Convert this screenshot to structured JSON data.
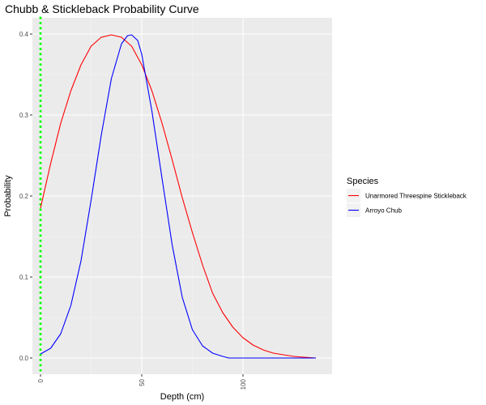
{
  "chart_data": {
    "type": "line",
    "title": "Chubb & Stickleback Probability Curve",
    "xlabel": "Depth (cm)",
    "ylabel": "Probability",
    "xlim": [
      -4,
      144
    ],
    "ylim": [
      -0.02,
      0.42
    ],
    "x_ticks": [
      0,
      50,
      100
    ],
    "x_tick_labels": [
      "0",
      "50",
      "100"
    ],
    "y_ticks": [
      0.0,
      0.1,
      0.2,
      0.3,
      0.4
    ],
    "y_tick_labels": [
      "0.0",
      "0.1",
      "0.2",
      "0.3",
      "0.4"
    ],
    "grid": true,
    "legend": {
      "title": "Species",
      "position": "right"
    },
    "reference_line": {
      "x": 0,
      "style": "dotted",
      "color": "#00ff00"
    },
    "series": [
      {
        "name": "Unarmored Threespine Stickleback",
        "color": "#ff0000",
        "points": [
          [
            0,
            0.185
          ],
          [
            5,
            0.24
          ],
          [
            10,
            0.29
          ],
          [
            15,
            0.33
          ],
          [
            20,
            0.362
          ],
          [
            25,
            0.385
          ],
          [
            30,
            0.396
          ],
          [
            35,
            0.399
          ],
          [
            40,
            0.396
          ],
          [
            45,
            0.385
          ],
          [
            50,
            0.362
          ],
          [
            55,
            0.33
          ],
          [
            60,
            0.29
          ],
          [
            65,
            0.245
          ],
          [
            70,
            0.198
          ],
          [
            75,
            0.155
          ],
          [
            80,
            0.115
          ],
          [
            85,
            0.08
          ],
          [
            90,
            0.056
          ],
          [
            95,
            0.038
          ],
          [
            100,
            0.025
          ],
          [
            105,
            0.016
          ],
          [
            110,
            0.01
          ],
          [
            115,
            0.006
          ],
          [
            120,
            0.004
          ],
          [
            125,
            0.002
          ],
          [
            130,
            0.001
          ],
          [
            136,
            0.0
          ]
        ]
      },
      {
        "name": "Arroyo Chub",
        "color": "#0000ff",
        "points": [
          [
            0,
            0.005
          ],
          [
            5,
            0.012
          ],
          [
            10,
            0.03
          ],
          [
            15,
            0.065
          ],
          [
            20,
            0.12
          ],
          [
            25,
            0.195
          ],
          [
            30,
            0.275
          ],
          [
            35,
            0.345
          ],
          [
            40,
            0.388
          ],
          [
            43,
            0.398
          ],
          [
            45,
            0.399
          ],
          [
            48,
            0.392
          ],
          [
            50,
            0.375
          ],
          [
            55,
            0.305
          ],
          [
            60,
            0.222
          ],
          [
            65,
            0.14
          ],
          [
            70,
            0.075
          ],
          [
            75,
            0.035
          ],
          [
            80,
            0.015
          ],
          [
            85,
            0.006
          ],
          [
            90,
            0.002
          ],
          [
            93,
            0.0
          ],
          [
            100,
            0.0
          ],
          [
            110,
            0.0
          ],
          [
            120,
            0.0
          ],
          [
            130,
            0.0
          ],
          [
            136,
            0.0
          ]
        ]
      }
    ]
  }
}
